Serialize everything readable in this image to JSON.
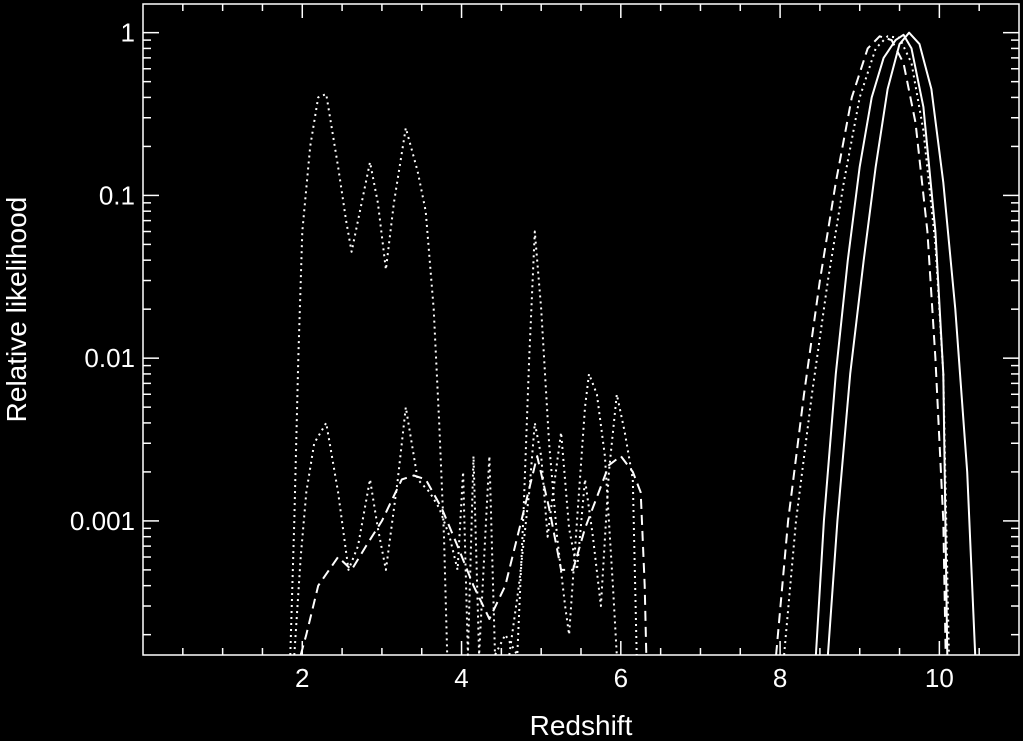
{
  "chart_data": {
    "type": "line",
    "title": "",
    "xlabel": "Redshift",
    "ylabel": "Relative likelihood",
    "xlim": [
      0,
      11
    ],
    "ylim": [
      0.00015,
      1.5
    ],
    "yscale": "log",
    "grid": false,
    "x_ticks": [
      {
        "value": 2,
        "label": "2"
      },
      {
        "value": 4,
        "label": "4"
      },
      {
        "value": 6,
        "label": "6"
      },
      {
        "value": 8,
        "label": "8"
      },
      {
        "value": 10,
        "label": "10"
      }
    ],
    "y_ticks": [
      {
        "value": 0.001,
        "label": "0.001"
      },
      {
        "value": 0.01,
        "label": "0.01"
      },
      {
        "value": 0.1,
        "label": "0.1"
      },
      {
        "value": 1,
        "label": "1"
      }
    ],
    "colors": {
      "background": "#000000",
      "foreground": "#ffffff"
    },
    "series": [
      {
        "style": "dotted",
        "points": [
          [
            1.85,
            0.00015
          ],
          [
            1.9,
            0.001
          ],
          [
            1.95,
            0.01
          ],
          [
            2.0,
            0.06
          ],
          [
            2.1,
            0.2
          ],
          [
            2.2,
            0.4
          ],
          [
            2.3,
            0.42
          ],
          [
            2.45,
            0.15
          ],
          [
            2.55,
            0.07
          ],
          [
            2.62,
            0.045
          ],
          [
            2.7,
            0.07
          ],
          [
            2.85,
            0.16
          ],
          [
            2.95,
            0.09
          ],
          [
            3.05,
            0.035
          ],
          [
            3.15,
            0.09
          ],
          [
            3.3,
            0.26
          ],
          [
            3.45,
            0.14
          ],
          [
            3.55,
            0.08
          ],
          [
            3.65,
            0.02
          ],
          [
            3.72,
            0.004
          ],
          [
            3.78,
            0.0008
          ],
          [
            3.82,
            0.00015
          ]
        ]
      },
      {
        "style": "dotted",
        "points": [
          [
            1.9,
            0.00015
          ],
          [
            1.98,
            0.0006
          ],
          [
            2.05,
            0.0015
          ],
          [
            2.15,
            0.003
          ],
          [
            2.3,
            0.004
          ],
          [
            2.45,
            0.0015
          ],
          [
            2.58,
            0.0005
          ],
          [
            2.7,
            0.0007
          ],
          [
            2.85,
            0.0018
          ],
          [
            2.95,
            0.0009
          ],
          [
            3.05,
            0.0005
          ],
          [
            3.2,
            0.0018
          ],
          [
            3.3,
            0.005
          ],
          [
            3.45,
            0.0018
          ],
          [
            3.6,
            0.0015
          ],
          [
            3.72,
            0.0012
          ],
          [
            3.85,
            0.0008
          ],
          [
            3.95,
            0.0005
          ],
          [
            4.02,
            0.002
          ],
          [
            4.08,
            0.00015
          ],
          [
            4.15,
            0.0025
          ],
          [
            4.22,
            0.00015
          ],
          [
            4.35,
            0.0025
          ],
          [
            4.42,
            0.00015
          ],
          [
            4.55,
            0.0002
          ],
          [
            4.7,
            0.00015
          ],
          [
            4.78,
            0.0012
          ],
          [
            4.85,
            0.01
          ],
          [
            4.92,
            0.06
          ],
          [
            5.0,
            0.02
          ],
          [
            5.1,
            0.003
          ],
          [
            5.2,
            0.0008
          ],
          [
            5.3,
            0.0003
          ],
          [
            5.35,
            0.0002
          ],
          [
            5.45,
            0.001
          ],
          [
            5.55,
            0.005
          ],
          [
            5.6,
            0.008
          ],
          [
            5.7,
            0.006
          ],
          [
            5.8,
            0.0025
          ],
          [
            5.9,
            0.0004
          ],
          [
            5.95,
            0.00015
          ]
        ]
      },
      {
        "style": "dotted",
        "points": [
          [
            4.6,
            0.00015
          ],
          [
            4.72,
            0.0004
          ],
          [
            4.85,
            0.0015
          ],
          [
            4.92,
            0.004
          ],
          [
            5.0,
            0.0025
          ],
          [
            5.08,
            0.0008
          ],
          [
            5.15,
            0.0015
          ],
          [
            5.25,
            0.0035
          ],
          [
            5.35,
            0.0009
          ],
          [
            5.45,
            0.0005
          ],
          [
            5.55,
            0.0018
          ],
          [
            5.65,
            0.0008
          ],
          [
            5.75,
            0.0003
          ],
          [
            5.85,
            0.002
          ],
          [
            5.95,
            0.006
          ],
          [
            6.05,
            0.0035
          ],
          [
            6.15,
            0.0018
          ],
          [
            6.2,
            0.00015
          ]
        ]
      },
      {
        "style": "dashed",
        "points": [
          [
            1.98,
            0.00015
          ],
          [
            2.05,
            0.0002
          ],
          [
            2.2,
            0.0004
          ],
          [
            2.45,
            0.0006
          ],
          [
            2.62,
            0.0005
          ],
          [
            2.8,
            0.0007
          ],
          [
            3.0,
            0.001
          ],
          [
            3.25,
            0.0018
          ],
          [
            3.4,
            0.0019
          ],
          [
            3.55,
            0.0018
          ],
          [
            3.75,
            0.0012
          ],
          [
            3.95,
            0.0007
          ],
          [
            4.15,
            0.0004
          ],
          [
            4.35,
            0.00025
          ],
          [
            4.55,
            0.0004
          ],
          [
            4.75,
            0.001
          ],
          [
            4.95,
            0.0025
          ],
          [
            5.1,
            0.0012
          ],
          [
            5.25,
            0.0005
          ],
          [
            5.4,
            0.0005
          ],
          [
            5.55,
            0.0009
          ],
          [
            5.7,
            0.0014
          ],
          [
            5.85,
            0.0022
          ],
          [
            6.0,
            0.0025
          ],
          [
            6.15,
            0.002
          ],
          [
            6.25,
            0.0015
          ],
          [
            6.3,
            0.0004
          ],
          [
            6.32,
            0.00015
          ]
        ]
      },
      {
        "style": "dashed",
        "points": [
          [
            7.95,
            0.00015
          ],
          [
            8.1,
            0.001
          ],
          [
            8.3,
            0.006
          ],
          [
            8.5,
            0.03
          ],
          [
            8.7,
            0.12
          ],
          [
            8.9,
            0.4
          ],
          [
            9.1,
            0.8
          ],
          [
            9.25,
            0.95
          ],
          [
            9.4,
            0.9
          ],
          [
            9.55,
            0.65
          ],
          [
            9.7,
            0.28
          ],
          [
            9.85,
            0.06
          ],
          [
            9.95,
            0.01
          ],
          [
            10.05,
            0.001
          ],
          [
            10.08,
            0.00015
          ]
        ]
      },
      {
        "style": "dotted",
        "points": [
          [
            8.05,
            0.00015
          ],
          [
            8.2,
            0.001
          ],
          [
            8.4,
            0.006
          ],
          [
            8.6,
            0.03
          ],
          [
            8.8,
            0.12
          ],
          [
            9.0,
            0.4
          ],
          [
            9.2,
            0.8
          ],
          [
            9.35,
            0.95
          ],
          [
            9.5,
            0.93
          ],
          [
            9.65,
            0.65
          ],
          [
            9.8,
            0.25
          ],
          [
            9.95,
            0.05
          ],
          [
            10.05,
            0.008
          ],
          [
            10.12,
            0.00015
          ]
        ]
      },
      {
        "style": "solid",
        "points": [
          [
            8.45,
            0.00015
          ],
          [
            8.55,
            0.001
          ],
          [
            8.7,
            0.008
          ],
          [
            8.85,
            0.04
          ],
          [
            9.0,
            0.15
          ],
          [
            9.15,
            0.4
          ],
          [
            9.3,
            0.7
          ],
          [
            9.45,
            0.9
          ],
          [
            9.55,
            0.97
          ],
          [
            9.65,
            0.8
          ],
          [
            9.8,
            0.35
          ],
          [
            9.95,
            0.06
          ],
          [
            10.05,
            0.008
          ],
          [
            10.1,
            0.00015
          ]
        ]
      },
      {
        "style": "solid",
        "points": [
          [
            8.6,
            0.00015
          ],
          [
            8.72,
            0.001
          ],
          [
            8.88,
            0.008
          ],
          [
            9.05,
            0.04
          ],
          [
            9.2,
            0.15
          ],
          [
            9.35,
            0.45
          ],
          [
            9.5,
            0.85
          ],
          [
            9.62,
            1.0
          ],
          [
            9.75,
            0.85
          ],
          [
            9.9,
            0.45
          ],
          [
            10.05,
            0.12
          ],
          [
            10.2,
            0.02
          ],
          [
            10.35,
            0.002
          ],
          [
            10.45,
            0.00015
          ]
        ]
      }
    ]
  }
}
